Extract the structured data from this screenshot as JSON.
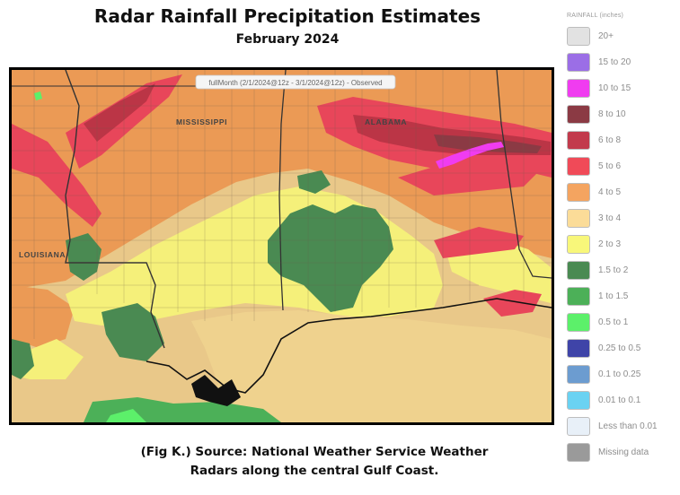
{
  "header": {
    "title": "Radar Rainfall Precipitation Estimates",
    "subtitle": "February 2024"
  },
  "map": {
    "period_label": "fullMonth (2/1/2024@12z - 3/1/2024@12z) - Observed",
    "state_labels": [
      "MISSISSIPPI",
      "ALABAMA",
      "LOUISIANA"
    ]
  },
  "caption": {
    "line1": "(Fig K.) Source: National Weather Service Weather",
    "line2": "Radars along the central Gulf Coast."
  },
  "legend": {
    "title": "RAINFALL (inches)",
    "items": [
      {
        "label": "20+",
        "color": "#e2e2e2"
      },
      {
        "label": "15 to 20",
        "color": "#9b6ee6"
      },
      {
        "label": "10 to 15",
        "color": "#f03cf0"
      },
      {
        "label": "8 to 10",
        "color": "#8b3a44"
      },
      {
        "label": "6 to 8",
        "color": "#c23a4c"
      },
      {
        "label": "5 to 6",
        "color": "#f04a58"
      },
      {
        "label": "4 to 5",
        "color": "#f4a460"
      },
      {
        "label": "3 to 4",
        "color": "#fbdc98"
      },
      {
        "label": "2 to 3",
        "color": "#f8f77a"
      },
      {
        "label": "1.5 to 2",
        "color": "#4a8a52"
      },
      {
        "label": "1 to 1.5",
        "color": "#4cb058"
      },
      {
        "label": "0.5 to 1",
        "color": "#5cf06a"
      },
      {
        "label": "0.25 to 0.5",
        "color": "#3f44a8"
      },
      {
        "label": "0.1 to 0.25",
        "color": "#6c9cd0"
      },
      {
        "label": "0.01 to 0.1",
        "color": "#6ad2f2"
      },
      {
        "label": "Less than 0.01",
        "color": "#e8f0f8"
      },
      {
        "label": "Missing data",
        "color": "#9a9a9a"
      }
    ]
  }
}
